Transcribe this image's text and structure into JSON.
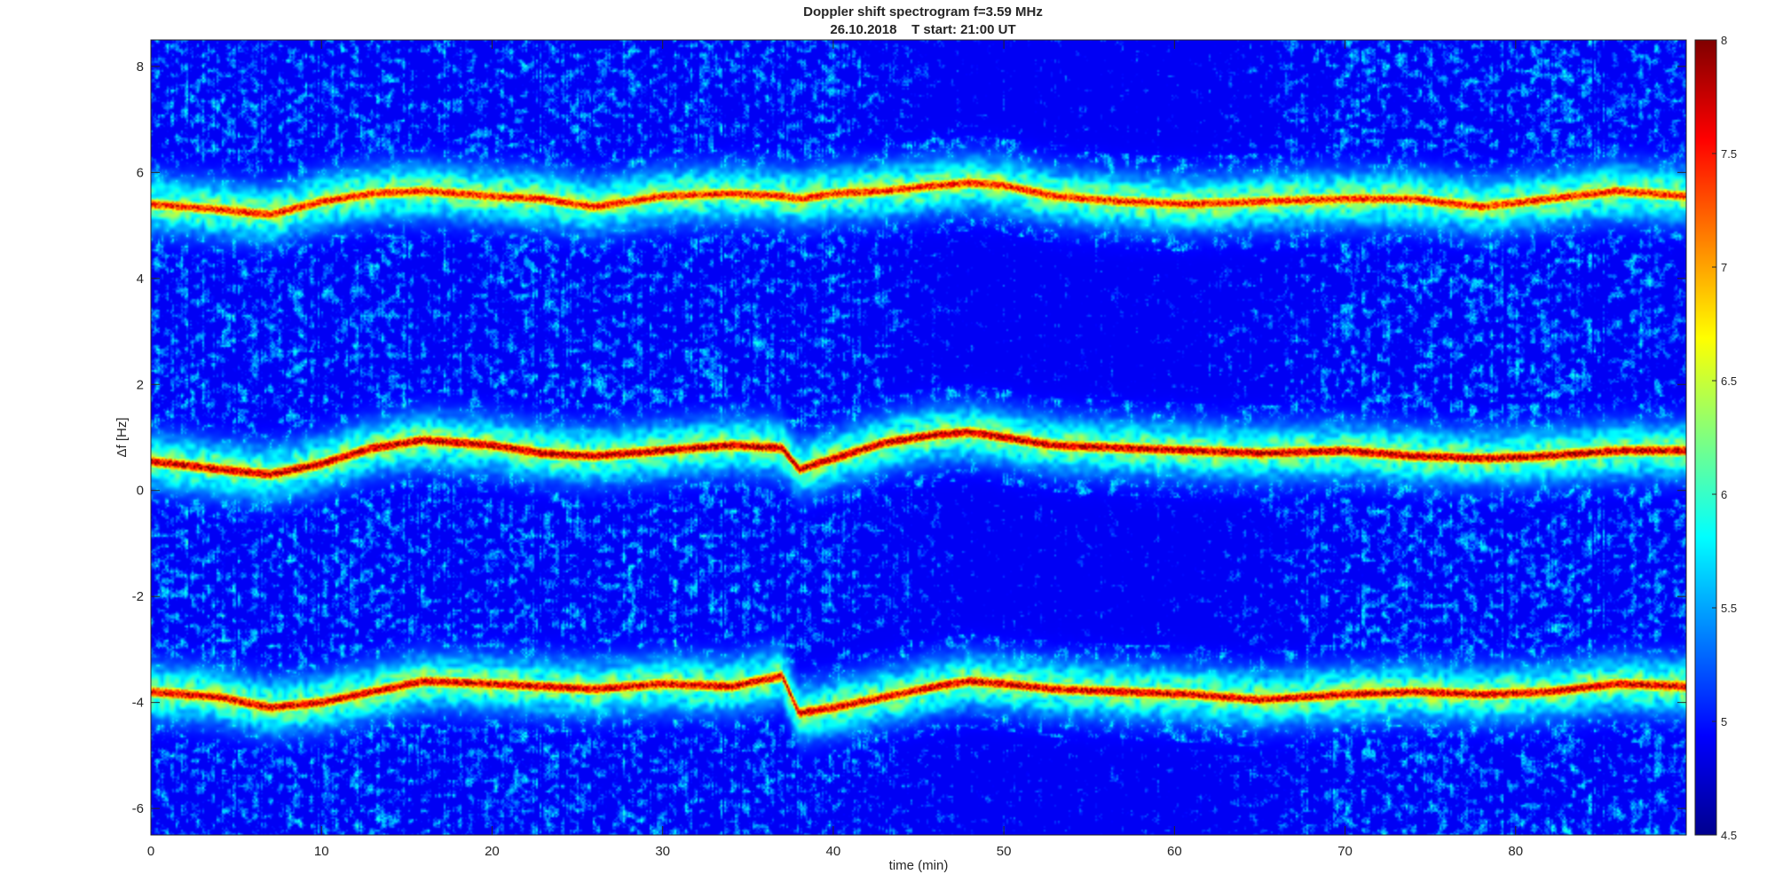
{
  "chart_data": {
    "type": "heatmap",
    "title": "Doppler shift spectrogram f=3.59 MHz",
    "subtitle": "26.10.2018    T start: 21:00 UT",
    "xlabel": "time (min)",
    "ylabel": "Δf [Hz]",
    "xlim": [
      0,
      90
    ],
    "ylim": [
      -6.5,
      8.5
    ],
    "x_ticks": [
      0,
      10,
      20,
      30,
      40,
      50,
      60,
      70,
      80
    ],
    "y_ticks": [
      -6,
      -4,
      -2,
      0,
      2,
      4,
      6,
      8
    ],
    "colormap": "jet",
    "colorbar": {
      "range": [
        4.5,
        8
      ],
      "ticks": [
        4.5,
        5,
        5.5,
        6,
        6.5,
        7,
        7.5,
        8
      ],
      "tick_labels": [
        "4.5",
        "5",
        "5.5",
        "6",
        "6.5",
        "7",
        "7.5",
        "8"
      ],
      "position": "right"
    },
    "background_level": 4.9,
    "series": [
      {
        "type": "ridge",
        "peak_level": 7.8,
        "x": [
          0,
          4,
          7,
          10,
          13,
          16,
          20,
          23,
          26,
          30,
          34,
          37,
          38,
          40,
          43,
          46,
          48,
          50,
          53,
          57,
          61,
          65,
          70,
          74,
          78,
          82,
          86,
          90
        ],
        "y": [
          0.55,
          0.4,
          0.3,
          0.5,
          0.8,
          0.95,
          0.85,
          0.7,
          0.65,
          0.75,
          0.85,
          0.8,
          0.4,
          0.6,
          0.9,
          1.05,
          1.1,
          1.0,
          0.85,
          0.8,
          0.75,
          0.7,
          0.75,
          0.65,
          0.6,
          0.65,
          0.75,
          0.75
        ]
      },
      {
        "type": "ridge",
        "peak_level": 7.5,
        "x": [
          0,
          4,
          7,
          10,
          13,
          16,
          20,
          23,
          26,
          30,
          34,
          37,
          38,
          40,
          43,
          46,
          48,
          50,
          53,
          57,
          61,
          65,
          70,
          74,
          78,
          82,
          86,
          90
        ],
        "y": [
          5.4,
          5.3,
          5.2,
          5.45,
          5.6,
          5.65,
          5.55,
          5.5,
          5.35,
          5.55,
          5.6,
          5.55,
          5.5,
          5.6,
          5.65,
          5.75,
          5.8,
          5.75,
          5.55,
          5.45,
          5.4,
          5.45,
          5.5,
          5.5,
          5.35,
          5.5,
          5.65,
          5.55
        ]
      },
      {
        "type": "ridge",
        "peak_level": 7.7,
        "x": [
          0,
          4,
          7,
          10,
          13,
          16,
          20,
          23,
          26,
          30,
          34,
          37,
          38,
          40,
          43,
          46,
          48,
          50,
          53,
          57,
          61,
          65,
          70,
          74,
          78,
          82,
          86,
          90
        ],
        "y": [
          -3.8,
          -3.9,
          -4.1,
          -4.0,
          -3.8,
          -3.6,
          -3.65,
          -3.7,
          -3.75,
          -3.65,
          -3.7,
          -3.5,
          -4.2,
          -4.1,
          -3.9,
          -3.7,
          -3.6,
          -3.65,
          -3.75,
          -3.8,
          -3.85,
          -3.95,
          -3.85,
          -3.8,
          -3.85,
          -3.8,
          -3.65,
          -3.7
        ]
      }
    ],
    "dark_region": {
      "x_range": [
        40,
        70
      ],
      "level": 4.55
    }
  }
}
